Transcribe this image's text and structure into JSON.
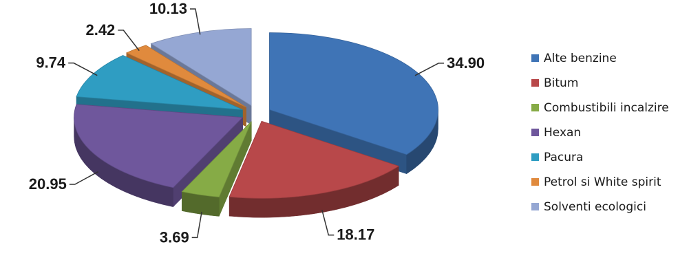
{
  "chart_data": {
    "type": "pie",
    "three_d": true,
    "exploded": true,
    "title": "",
    "categories": [
      "Alte benzine",
      "Bitum",
      "Combustibili incalzire",
      "Hexan",
      "Pacura",
      "Petrol si White spirit",
      "Solventi ecologici"
    ],
    "values": [
      34.9,
      18.17,
      3.69,
      20.95,
      9.74,
      2.42,
      10.13
    ],
    "value_labels": [
      "34.90",
      "18.17",
      "3.69",
      "20.95",
      "9.74",
      "2.42",
      "10.13"
    ],
    "colors": [
      "#3f74b6",
      "#b8484a",
      "#86ab46",
      "#6f579c",
      "#2f9dc2",
      "#e08a3d",
      "#95a7d3"
    ],
    "legend_position": "right"
  }
}
